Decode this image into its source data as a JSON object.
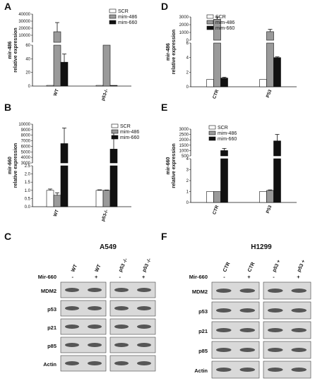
{
  "panel_letters": [
    "A",
    "B",
    "C",
    "D",
    "E",
    "F"
  ],
  "colors": {
    "scr": "#ffffff",
    "mim486": "#9a9a9a",
    "mim660": "#111111",
    "blot_bg": "#d9d9d9"
  },
  "legend": [
    "SCR",
    "mim-486",
    "mim-660"
  ],
  "chart_data": [
    {
      "id": "A",
      "type": "bar",
      "ylabel": "mir-486",
      "ylabel2": "relative expression",
      "categories": [
        "WT",
        "p53-/-"
      ],
      "series": [
        {
          "name": "SCR",
          "values": [
            1,
            1
          ]
        },
        {
          "name": "mim-486",
          "values": [
            15000,
            60
          ]
        },
        {
          "name": "mim-660",
          "values": [
            35,
            1
          ]
        }
      ],
      "errors": [
        [
          0,
          0
        ],
        [
          13000,
          0
        ],
        [
          12,
          0
        ]
      ],
      "broken_axis": true,
      "upper_ticks": [
        "10000",
        "20000",
        "30000",
        "40000"
      ],
      "lower_ticks": [
        "0",
        "20",
        "40",
        "60"
      ]
    },
    {
      "id": "B",
      "type": "bar",
      "ylabel": "mir-660",
      "ylabel2": "relative expression",
      "categories": [
        "WT",
        "p53-/-"
      ],
      "series": [
        {
          "name": "SCR",
          "values": [
            1,
            1
          ]
        },
        {
          "name": "mim-486",
          "values": [
            0.7,
            1
          ]
        },
        {
          "name": "mim-660",
          "values": [
            6500,
            5500
          ]
        }
      ],
      "errors": [
        [
          0.08,
          0.03
        ],
        [
          0.15,
          0.02
        ],
        [
          2800,
          3000
        ]
      ],
      "broken_axis": true,
      "upper_ticks": [
        "3000",
        "4000",
        "5000",
        "6000",
        "7000",
        "8000",
        "9000",
        "10000"
      ],
      "lower_ticks": [
        "0.0",
        "0.5",
        "1.0",
        "1.5",
        "2.0",
        "2.5"
      ]
    },
    {
      "id": "D",
      "type": "bar",
      "ylabel": "mir-486",
      "ylabel2": "relative expression",
      "categories": [
        "CTR",
        "P53"
      ],
      "series": [
        {
          "name": "SCR",
          "values": [
            1,
            1
          ]
        },
        {
          "name": "mim-486",
          "values": [
            2700,
            1100
          ]
        },
        {
          "name": "mim-660",
          "values": [
            1.2,
            4
          ]
        }
      ],
      "errors": [
        [
          0,
          0
        ],
        [
          300,
          300
        ],
        [
          0.1,
          0.1
        ]
      ],
      "broken_axis": true,
      "upper_ticks": [
        "0",
        "1000",
        "2000",
        "3000"
      ],
      "lower_ticks": [
        "0",
        "2",
        "4",
        "6"
      ]
    },
    {
      "id": "E",
      "type": "bar",
      "ylabel": "mir-660",
      "ylabel2": "relative expression",
      "categories": [
        "CTR",
        "P53"
      ],
      "series": [
        {
          "name": "SCR",
          "values": [
            1,
            1
          ]
        },
        {
          "name": "mim-486",
          "values": [
            1,
            1.1
          ]
        },
        {
          "name": "mim-660",
          "values": [
            1000,
            1900
          ]
        }
      ],
      "errors": [
        [
          0,
          0
        ],
        [
          0,
          0.05
        ],
        [
          200,
          600
        ]
      ],
      "broken_axis": true,
      "upper_ticks": [
        "500",
        "1000",
        "1500",
        "2000",
        "2500",
        "3000"
      ],
      "lower_ticks": [
        "0",
        "1",
        "2",
        "3",
        "4"
      ]
    }
  ],
  "blots": [
    {
      "id": "C",
      "title": "A549",
      "lanes": [
        "WT",
        "WT",
        "p53 -/-",
        "p53 -/-"
      ],
      "treatment_label": "Mir-660",
      "treatment": [
        "-",
        "+",
        "-",
        "+"
      ],
      "rows": [
        "MDM2",
        "p53",
        "p21",
        "p85",
        "Actin"
      ]
    },
    {
      "id": "F",
      "title": "H1299",
      "lanes": [
        "CTR",
        "CTR",
        "p53 +",
        "p53 +"
      ],
      "treatment_label": "Mir-660",
      "treatment": [
        "-",
        "+",
        "-",
        "+"
      ],
      "rows": [
        "MDM2",
        "p53",
        "p21",
        "p85",
        "Actin"
      ]
    }
  ]
}
